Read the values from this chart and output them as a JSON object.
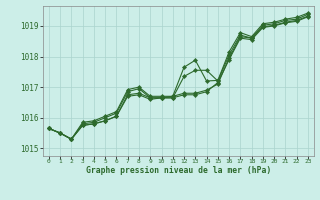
{
  "x": [
    0,
    1,
    2,
    3,
    4,
    5,
    6,
    7,
    8,
    9,
    10,
    11,
    12,
    13,
    14,
    15,
    16,
    17,
    18,
    19,
    20,
    21,
    22,
    23
  ],
  "line1": [
    1015.65,
    1015.5,
    1015.3,
    1015.75,
    1015.8,
    1015.9,
    1016.05,
    1016.7,
    1016.75,
    1016.6,
    1016.65,
    1016.65,
    1016.75,
    1016.75,
    1016.85,
    1017.15,
    1017.9,
    1018.6,
    1018.55,
    1018.95,
    1019.0,
    1019.1,
    1019.15,
    1019.3
  ],
  "line2": [
    1015.65,
    1015.5,
    1015.3,
    1015.75,
    1015.8,
    1015.9,
    1016.05,
    1016.75,
    1016.8,
    1016.65,
    1016.65,
    1016.7,
    1016.8,
    1016.8,
    1016.9,
    1017.1,
    1017.95,
    1018.65,
    1018.6,
    1018.97,
    1019.02,
    1019.12,
    1019.18,
    1019.32
  ],
  "line3": [
    1015.65,
    1015.5,
    1015.3,
    1015.8,
    1015.85,
    1016.0,
    1016.15,
    1016.85,
    1016.95,
    1016.65,
    1016.65,
    1016.65,
    1017.35,
    1017.55,
    1017.55,
    1017.2,
    1018.05,
    1018.7,
    1018.6,
    1019.02,
    1019.07,
    1019.18,
    1019.22,
    1019.38
  ],
  "line4": [
    1015.65,
    1015.5,
    1015.3,
    1015.85,
    1015.9,
    1016.05,
    1016.2,
    1016.92,
    1017.0,
    1016.7,
    1016.7,
    1016.7,
    1017.65,
    1017.88,
    1017.2,
    1017.22,
    1018.15,
    1018.78,
    1018.65,
    1019.07,
    1019.12,
    1019.22,
    1019.28,
    1019.42
  ],
  "line_color": "#2d6a2d",
  "bg_color": "#cceee8",
  "grid_color": "#aad4ce",
  "text_color": "#2d6a2d",
  "xlabel": "Graphe pression niveau de la mer (hPa)",
  "yticks": [
    1015,
    1016,
    1017,
    1018,
    1019
  ],
  "ylim": [
    1014.75,
    1019.65
  ],
  "xlim": [
    -0.5,
    23.5
  ],
  "marker": "D",
  "markersize": 2.2,
  "linewidth": 0.8
}
